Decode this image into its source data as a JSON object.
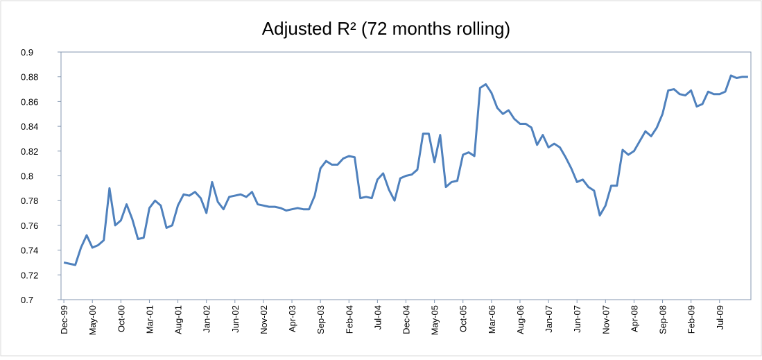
{
  "chart_data": {
    "type": "line",
    "title": "Adjusted R² (72 months rolling)",
    "categories": [
      "Dec-99",
      null,
      null,
      null,
      null,
      "May-00",
      null,
      null,
      null,
      null,
      "Oct-00",
      null,
      null,
      null,
      null,
      "Mar-01",
      null,
      null,
      null,
      null,
      "Aug-01",
      null,
      null,
      null,
      null,
      "Jan-02",
      null,
      null,
      null,
      null,
      "Jun-02",
      null,
      null,
      null,
      null,
      "Nov-02",
      null,
      null,
      null,
      null,
      "Apr-03",
      null,
      null,
      null,
      null,
      "Sep-03",
      null,
      null,
      null,
      null,
      "Feb-04",
      null,
      null,
      null,
      null,
      "Jul-04",
      null,
      null,
      null,
      null,
      "Dec-04",
      null,
      null,
      null,
      null,
      "May-05",
      null,
      null,
      null,
      null,
      "Oct-05",
      null,
      null,
      null,
      null,
      "Mar-06",
      null,
      null,
      null,
      null,
      "Aug-06",
      null,
      null,
      null,
      null,
      "Jan-07",
      null,
      null,
      null,
      null,
      "Jun-07",
      null,
      null,
      null,
      null,
      "Nov-07",
      null,
      null,
      null,
      null,
      "Apr-08",
      null,
      null,
      null,
      null,
      "Sep-08",
      null,
      null,
      null,
      null,
      "Feb-09",
      null,
      null,
      null,
      null,
      "Jul-09",
      null,
      null,
      null,
      null,
      null
    ],
    "series": [
      {
        "color": "#4f81bd",
        "values": [
          0.73,
          0.729,
          0.728,
          0.742,
          0.752,
          0.742,
          0.744,
          0.748,
          0.79,
          0.76,
          0.764,
          0.777,
          0.765,
          0.749,
          0.75,
          0.774,
          0.78,
          0.776,
          0.758,
          0.76,
          0.776,
          0.785,
          0.784,
          0.787,
          0.782,
          0.77,
          0.795,
          0.779,
          0.773,
          0.783,
          0.784,
          0.785,
          0.783,
          0.787,
          0.777,
          0.776,
          0.775,
          0.775,
          0.774,
          0.772,
          0.773,
          0.774,
          0.773,
          0.773,
          0.784,
          0.806,
          0.812,
          0.809,
          0.809,
          0.814,
          0.816,
          0.815,
          0.782,
          0.783,
          0.782,
          0.797,
          0.802,
          0.789,
          0.78,
          0.798,
          0.8,
          0.801,
          0.805,
          0.834,
          0.834,
          0.811,
          0.833,
          0.791,
          0.795,
          0.796,
          0.817,
          0.819,
          0.816,
          0.871,
          0.874,
          0.867,
          0.855,
          0.85,
          0.853,
          0.846,
          0.842,
          0.842,
          0.839,
          0.825,
          0.833,
          0.823,
          0.826,
          0.823,
          0.815,
          0.806,
          0.795,
          0.797,
          0.791,
          0.788,
          0.768,
          0.776,
          0.792,
          0.792,
          0.821,
          0.817,
          0.82,
          0.828,
          0.836,
          0.832,
          0.839,
          0.85,
          0.869,
          0.87,
          0.866,
          0.865,
          0.869,
          0.856,
          0.858,
          0.868,
          0.866,
          0.866,
          0.868,
          0.881,
          0.879,
          0.88,
          0.88
        ]
      }
    ],
    "ylim": [
      0.7,
      0.9
    ],
    "yticks": [
      0.7,
      0.72,
      0.74,
      0.76,
      0.78,
      0.8,
      0.82,
      0.84,
      0.86,
      0.88,
      0.9
    ]
  }
}
